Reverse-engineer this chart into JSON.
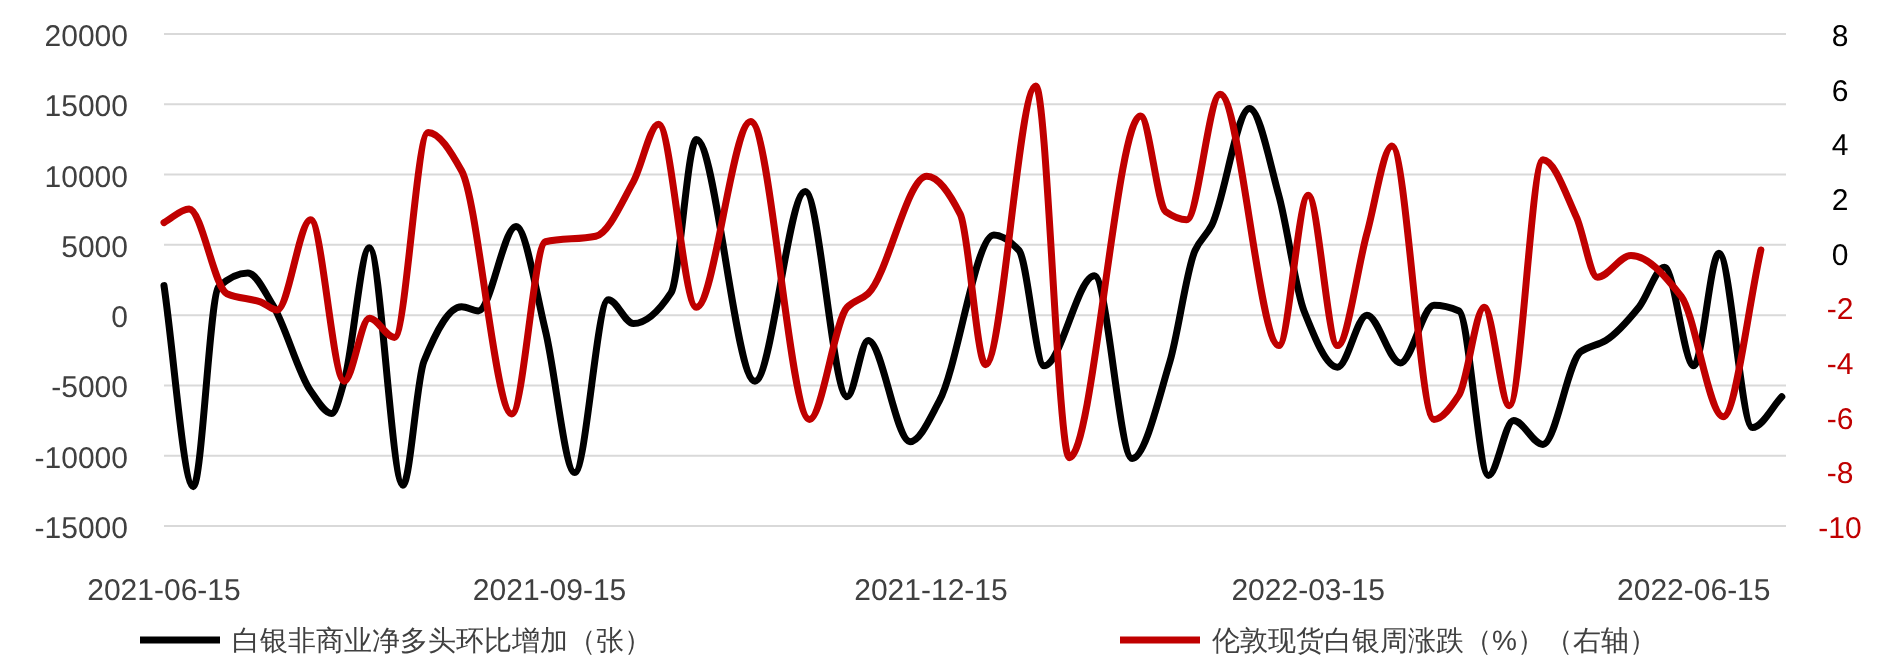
{
  "chart_data": {
    "type": "line",
    "legend": "bottom",
    "grid": "y",
    "marker": "none",
    "line_style": "solid",
    "xlim": [
      "2021-06-15",
      "2022-07-07"
    ],
    "xticks": [
      "2021-06-15",
      "2021-09-15",
      "2021-12-15",
      "2022-03-15",
      "2022-06-15"
    ],
    "ylim": [
      -15000,
      20000
    ],
    "yticks": [
      -15000,
      -10000,
      -5000,
      0,
      5000,
      10000,
      15000,
      20000
    ],
    "y2lim": [
      -10,
      8
    ],
    "y2ticks": [
      -10,
      -8,
      -6,
      -4,
      -2,
      0,
      2,
      4,
      6,
      8
    ],
    "series": [
      {
        "name": "白银非商业净多头环比增加（张）",
        "color": "#000000",
        "x": [
          "2021-06-15",
          "2021-06-22",
          "2021-06-28",
          "2021-07-05",
          "2021-07-11",
          "2021-07-20",
          "2021-07-25",
          "2021-07-28",
          "2021-08-03",
          "2021-08-11",
          "2021-08-16",
          "2021-08-25",
          "2021-08-29",
          "2021-09-07",
          "2021-09-14",
          "2021-09-21",
          "2021-09-29",
          "2021-10-05",
          "2021-10-14",
          "2021-10-20",
          "2021-11-03",
          "2021-11-15",
          "2021-11-25",
          "2021-11-30",
          "2021-12-10",
          "2021-12-17",
          "2021-12-30",
          "2022-01-05",
          "2022-01-11",
          "2022-01-23",
          "2022-02-01",
          "2022-02-10",
          "2022-02-16",
          "2022-02-20",
          "2022-03-01",
          "2022-03-08",
          "2022-03-14",
          "2022-03-22",
          "2022-03-29",
          "2022-04-06",
          "2022-04-14",
          "2022-04-20",
          "2022-04-27",
          "2022-05-03",
          "2022-05-10",
          "2022-05-19",
          "2022-05-25",
          "2022-06-02",
          "2022-06-08",
          "2022-06-15",
          "2022-06-21",
          "2022-06-29",
          "2022-07-06"
        ],
        "values": [
          2100,
          -12200,
          2000,
          3000,
          700,
          -5400,
          -7000,
          -4700,
          4800,
          -12100,
          -3300,
          600,
          300,
          6300,
          -1100,
          -11200,
          1100,
          -600,
          1600,
          12500,
          -4700,
          8800,
          -5800,
          -1800,
          -9000,
          -6100,
          5700,
          4600,
          -3600,
          2800,
          -10200,
          -3300,
          4600,
          6400,
          14700,
          8500,
          300,
          -3700,
          0,
          -3400,
          700,
          300,
          -11400,
          -7500,
          -9200,
          -2600,
          -1800,
          600,
          3400,
          -3600,
          4400,
          -8000,
          -5800
        ]
      },
      {
        "name": "伦敦现货白银周涨跌（%）（右轴）",
        "color": "#c00000",
        "axis": "y2",
        "x": [
          "2021-06-15",
          "2021-06-21",
          "2021-06-30",
          "2021-07-08",
          "2021-07-12",
          "2021-07-20",
          "2021-07-28",
          "2021-08-03",
          "2021-08-09",
          "2021-08-17",
          "2021-08-25",
          "2021-09-06",
          "2021-09-14",
          "2021-09-26",
          "2021-10-05",
          "2021-10-11",
          "2021-10-20",
          "2021-11-02",
          "2021-11-16",
          "2021-11-25",
          "2021-11-30",
          "2021-12-14",
          "2021-12-22",
          "2021-12-28",
          "2022-01-09",
          "2022-01-17",
          "2022-02-03",
          "2022-02-09",
          "2022-02-14",
          "2022-02-22",
          "2022-03-08",
          "2022-03-15",
          "2022-03-22",
          "2022-03-29",
          "2022-04-04",
          "2022-04-14",
          "2022-04-20",
          "2022-04-26",
          "2022-05-02",
          "2022-05-10",
          "2022-05-18",
          "2022-05-23",
          "2022-05-31",
          "2022-06-12",
          "2022-06-22",
          "2022-07-01"
        ],
        "values": [
          1.1,
          1.6,
          -1.5,
          -1.8,
          -2.1,
          1.2,
          -4.7,
          -2.4,
          -3.1,
          4.4,
          3.0,
          -5.9,
          0.4,
          0.6,
          2.6,
          4.7,
          -2.0,
          4.8,
          -6.1,
          -2.0,
          -1.5,
          2.8,
          1.4,
          -4.1,
          6.1,
          -7.5,
          5.0,
          1.5,
          1.2,
          5.8,
          -3.4,
          2.1,
          -3.4,
          0.7,
          3.9,
          -6.1,
          -5.2,
          -2.0,
          -5.6,
          3.4,
          1.3,
          -0.9,
          -0.1,
          -1.6,
          -6.0,
          0.1
        ]
      }
    ]
  }
}
